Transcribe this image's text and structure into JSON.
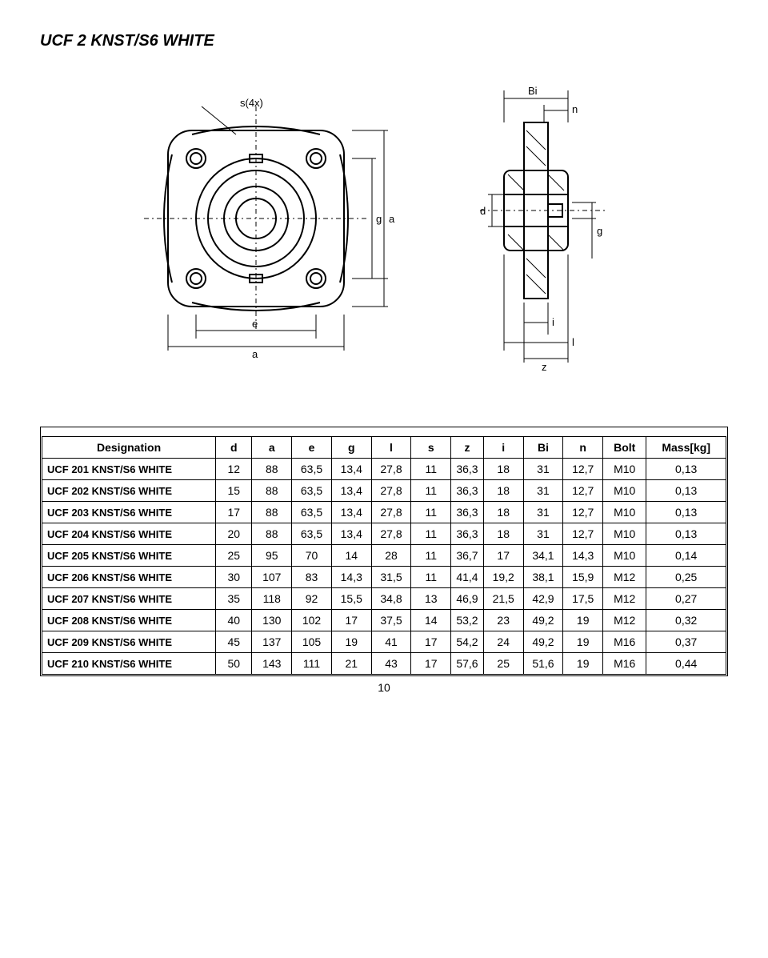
{
  "title": "UCF 2 KNST/S6 WHITE",
  "page_number": "10",
  "diagram": {
    "front_labels": {
      "s": "s(4x)",
      "e": "e",
      "a": "a",
      "g_side": "g",
      "a_side": "a"
    },
    "side_labels": {
      "Bi": "Bi",
      "n": "n",
      "d": "d",
      "g": "g",
      "i": "i",
      "l": "l",
      "z": "z"
    },
    "stroke": "#000000",
    "fill": "#ffffff"
  },
  "table": {
    "columns": [
      "Designation",
      "d",
      "a",
      "e",
      "g",
      "l",
      "s",
      "z",
      "i",
      "Bi",
      "n",
      "Bolt",
      "Mass[kg]"
    ],
    "col_widths_pct": [
      24,
      5,
      5.5,
      5.5,
      5.5,
      5.5,
      5.5,
      4.5,
      5.5,
      5.5,
      5.5,
      6,
      11
    ],
    "rows": [
      [
        "UCF 201 KNST/S6 WHITE",
        "12",
        "88",
        "63,5",
        "13,4",
        "27,8",
        "11",
        "36,3",
        "18",
        "31",
        "12,7",
        "M10",
        "0,13"
      ],
      [
        "UCF 202 KNST/S6 WHITE",
        "15",
        "88",
        "63,5",
        "13,4",
        "27,8",
        "11",
        "36,3",
        "18",
        "31",
        "12,7",
        "M10",
        "0,13"
      ],
      [
        "UCF 203 KNST/S6 WHITE",
        "17",
        "88",
        "63,5",
        "13,4",
        "27,8",
        "11",
        "36,3",
        "18",
        "31",
        "12,7",
        "M10",
        "0,13"
      ],
      [
        "UCF 204 KNST/S6 WHITE",
        "20",
        "88",
        "63,5",
        "13,4",
        "27,8",
        "11",
        "36,3",
        "18",
        "31",
        "12,7",
        "M10",
        "0,13"
      ],
      [
        "UCF 205 KNST/S6 WHITE",
        "25",
        "95",
        "70",
        "14",
        "28",
        "11",
        "36,7",
        "17",
        "34,1",
        "14,3",
        "M10",
        "0,14"
      ],
      [
        "UCF 206 KNST/S6 WHITE",
        "30",
        "107",
        "83",
        "14,3",
        "31,5",
        "11",
        "41,4",
        "19,2",
        "38,1",
        "15,9",
        "M12",
        "0,25"
      ],
      [
        "UCF 207 KNST/S6 WHITE",
        "35",
        "118",
        "92",
        "15,5",
        "34,8",
        "13",
        "46,9",
        "21,5",
        "42,9",
        "17,5",
        "M12",
        "0,27"
      ],
      [
        "UCF 208 KNST/S6 WHITE",
        "40",
        "130",
        "102",
        "17",
        "37,5",
        "14",
        "53,2",
        "23",
        "49,2",
        "19",
        "M12",
        "0,32"
      ],
      [
        "UCF 209 KNST/S6 WHITE",
        "45",
        "137",
        "105",
        "19",
        "41",
        "17",
        "54,2",
        "24",
        "49,2",
        "19",
        "M16",
        "0,37"
      ],
      [
        "UCF 210 KNST/S6 WHITE",
        "50",
        "143",
        "111",
        "21",
        "43",
        "17",
        "57,6",
        "25",
        "51,6",
        "19",
        "M16",
        "0,44"
      ]
    ]
  }
}
